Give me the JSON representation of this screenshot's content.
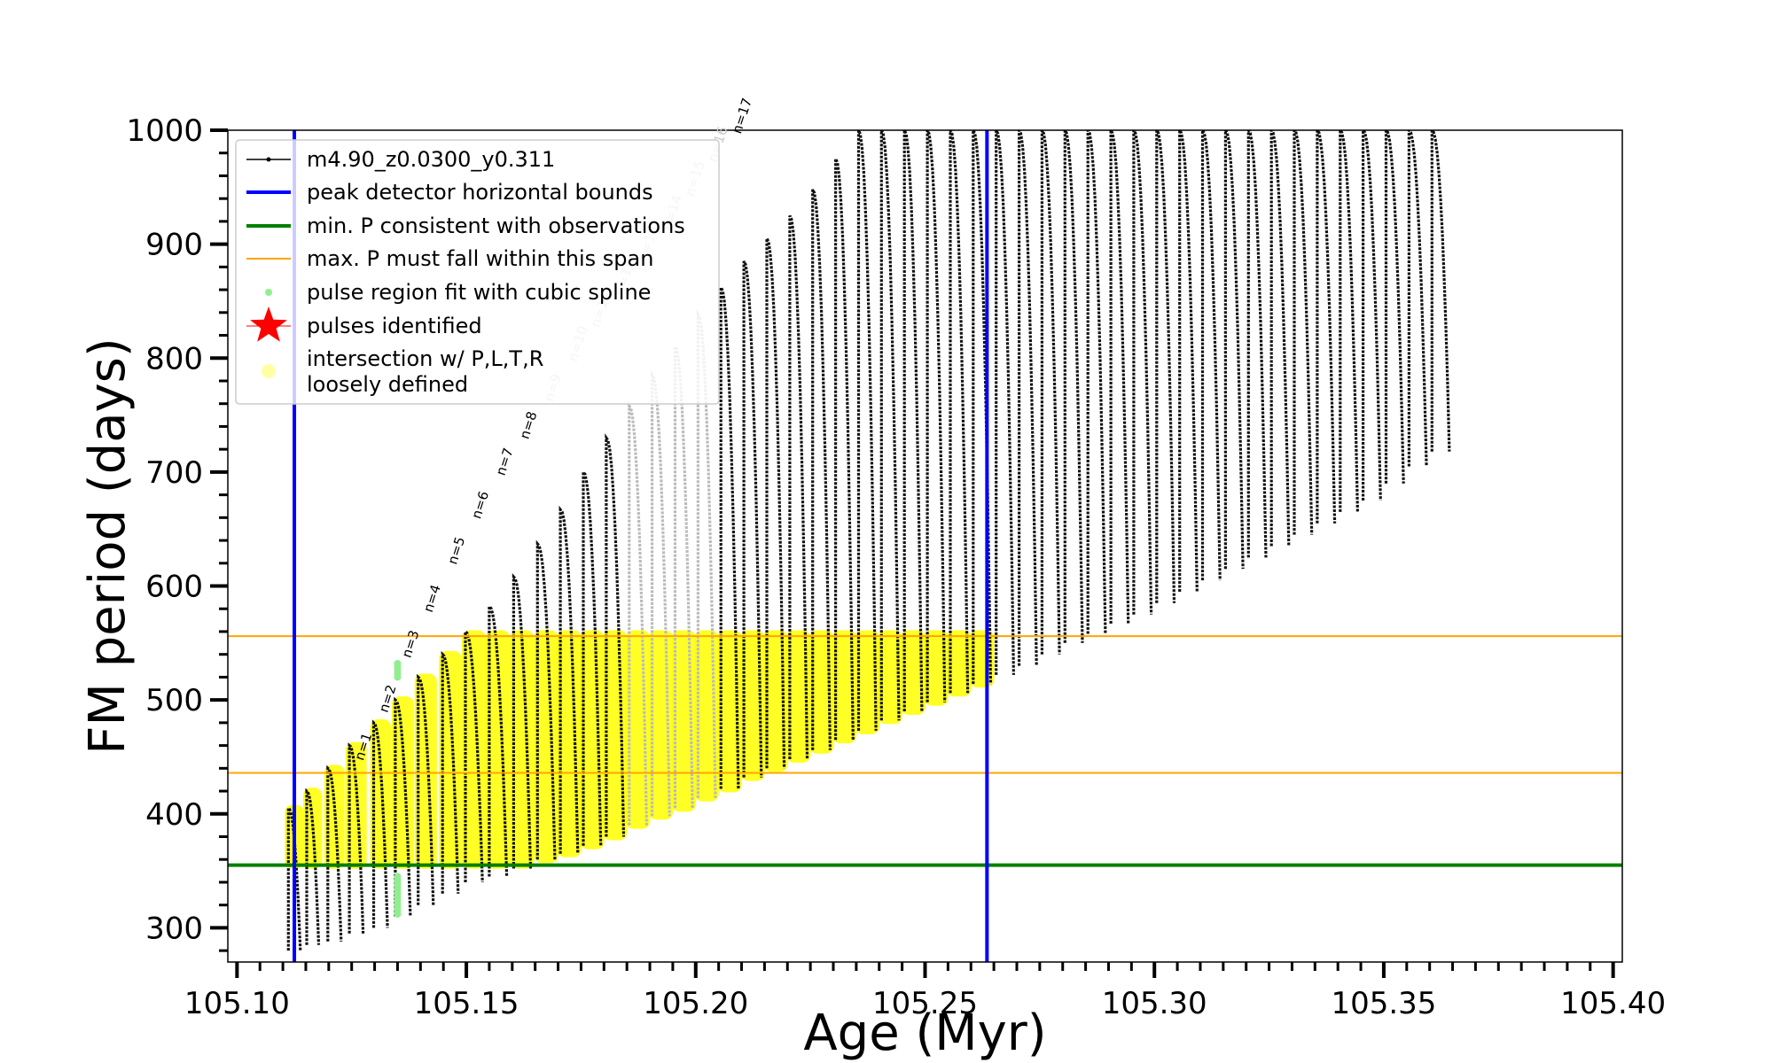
{
  "chart_data": {
    "type": "line",
    "xlabel": "Age (Myr)",
    "ylabel": "FM period (days)",
    "xlim": [
      105.098,
      105.402
    ],
    "ylim": [
      270,
      1000
    ],
    "x_ticks": [
      "105.10",
      "105.15",
      "105.20",
      "105.25",
      "105.30",
      "105.35",
      "105.40"
    ],
    "y_ticks": [
      "300",
      "400",
      "500",
      "600",
      "700",
      "800",
      "900",
      "1000"
    ],
    "legend_position": "upper-left",
    "legend": [
      {
        "label": "m4.90_z0.0300_y0.311",
        "marker": "line-dot",
        "color": "#000000"
      },
      {
        "label": "peak detector horizontal bounds",
        "marker": "line",
        "color": "#0000ff"
      },
      {
        "label": "min. P consistent with observations",
        "marker": "line",
        "color": "#008000"
      },
      {
        "label": "max. P must fall within this span",
        "marker": "line",
        "color": "#ffa500"
      },
      {
        "label": "pulse region fit with cubic spline",
        "marker": "dot",
        "color": "#90ee90"
      },
      {
        "label": "pulses identified",
        "marker": "star",
        "color": "#ff0000"
      },
      {
        "label": "intersection w/ P,L,T,R",
        "label2": "loosely defined",
        "marker": "circle",
        "color": "#ffff00"
      }
    ],
    "vertical_lines": [
      {
        "x": 105.1125,
        "color": "#0000ff",
        "name": "peak detector horizontal bounds"
      },
      {
        "x": 105.2635,
        "color": "#0000ff",
        "name": "peak detector horizontal bounds"
      }
    ],
    "horizontal_lines": [
      {
        "y": 355,
        "color": "#008000",
        "name": "min. P consistent with observations"
      },
      {
        "y": 436,
        "color": "#ffa500",
        "name": "max. P must fall within this span"
      },
      {
        "y": 556,
        "color": "#ffa500",
        "name": "max. P must fall within this span"
      }
    ],
    "series": [
      {
        "name": "m4.90_z0.0300_y0.311",
        "pulses": [
          {
            "start": 105.1112,
            "end": 105.1138,
            "min": 280,
            "max": 405
          },
          {
            "start": 105.1152,
            "end": 105.1178,
            "min": 285,
            "max": 420
          },
          {
            "start": 105.1198,
            "end": 105.1227,
            "min": 288,
            "max": 440
          },
          {
            "start": 105.1245,
            "end": 105.1275,
            "min": 295,
            "max": 460
          },
          {
            "start": 105.1298,
            "end": 105.1328,
            "min": 300,
            "max": 480
          },
          {
            "start": 105.1345,
            "end": 105.1378,
            "min": 310,
            "max": 500
          },
          {
            "start": 105.1395,
            "end": 105.1428,
            "min": 320,
            "max": 520
          },
          {
            "start": 105.1448,
            "end": 105.1482,
            "min": 330,
            "max": 540
          },
          {
            "start": 105.1498,
            "end": 105.1535,
            "min": 340,
            "max": 560
          },
          {
            "start": 105.155,
            "end": 105.1588,
            "min": 345,
            "max": 582
          },
          {
            "start": 105.1603,
            "end": 105.164,
            "min": 352,
            "max": 608
          },
          {
            "start": 105.1655,
            "end": 105.1693,
            "min": 360,
            "max": 637
          },
          {
            "start": 105.1705,
            "end": 105.1743,
            "min": 365,
            "max": 667
          },
          {
            "start": 105.1755,
            "end": 105.1793,
            "min": 372,
            "max": 700
          },
          {
            "start": 105.1805,
            "end": 105.1843,
            "min": 380,
            "max": 730
          },
          {
            "start": 105.1855,
            "end": 105.1893,
            "min": 390,
            "max": 758
          },
          {
            "start": 105.1905,
            "end": 105.1943,
            "min": 398,
            "max": 785
          },
          {
            "start": 105.1955,
            "end": 105.1993,
            "min": 405,
            "max": 810
          },
          {
            "start": 105.2005,
            "end": 105.2043,
            "min": 414,
            "max": 838
          },
          {
            "start": 105.2055,
            "end": 105.2093,
            "min": 422,
            "max": 862
          },
          {
            "start": 105.2105,
            "end": 105.2143,
            "min": 432,
            "max": 885
          },
          {
            "start": 105.2155,
            "end": 105.2193,
            "min": 440,
            "max": 905
          },
          {
            "start": 105.2205,
            "end": 105.2243,
            "min": 448,
            "max": 925
          },
          {
            "start": 105.2255,
            "end": 105.2293,
            "min": 456,
            "max": 948
          },
          {
            "start": 105.2305,
            "end": 105.2343,
            "min": 465,
            "max": 975
          },
          {
            "start": 105.2355,
            "end": 105.2393,
            "min": 473,
            "max": 1000
          },
          {
            "start": 105.2405,
            "end": 105.2443,
            "min": 482,
            "max": 1000
          },
          {
            "start": 105.2455,
            "end": 105.2493,
            "min": 490,
            "max": 1000
          },
          {
            "start": 105.2505,
            "end": 105.2543,
            "min": 498,
            "max": 1000
          },
          {
            "start": 105.2555,
            "end": 105.2593,
            "min": 506,
            "max": 1000
          },
          {
            "start": 105.2605,
            "end": 105.2643,
            "min": 514,
            "max": 1000
          },
          {
            "start": 105.2655,
            "end": 105.2693,
            "min": 522,
            "max": 1000
          },
          {
            "start": 105.2705,
            "end": 105.2743,
            "min": 530,
            "max": 1000
          },
          {
            "start": 105.2755,
            "end": 105.2793,
            "min": 540,
            "max": 1000
          },
          {
            "start": 105.2805,
            "end": 105.2843,
            "min": 550,
            "max": 1000
          },
          {
            "start": 105.2855,
            "end": 105.2893,
            "min": 558,
            "max": 1000
          },
          {
            "start": 105.2905,
            "end": 105.2943,
            "min": 567,
            "max": 1000
          },
          {
            "start": 105.2955,
            "end": 105.2993,
            "min": 575,
            "max": 1000
          },
          {
            "start": 105.3005,
            "end": 105.3043,
            "min": 585,
            "max": 1000
          },
          {
            "start": 105.3055,
            "end": 105.3093,
            "min": 595,
            "max": 1000
          },
          {
            "start": 105.3105,
            "end": 105.3143,
            "min": 605,
            "max": 1000
          },
          {
            "start": 105.3155,
            "end": 105.3193,
            "min": 615,
            "max": 1000
          },
          {
            "start": 105.3205,
            "end": 105.3243,
            "min": 625,
            "max": 1000
          },
          {
            "start": 105.3255,
            "end": 105.3293,
            "min": 635,
            "max": 1000
          },
          {
            "start": 105.3305,
            "end": 105.3343,
            "min": 645,
            "max": 1000
          },
          {
            "start": 105.3355,
            "end": 105.3393,
            "min": 655,
            "max": 1000
          },
          {
            "start": 105.3405,
            "end": 105.3443,
            "min": 665,
            "max": 1000
          },
          {
            "start": 105.3455,
            "end": 105.3493,
            "min": 675,
            "max": 1000
          },
          {
            "start": 105.3505,
            "end": 105.3543,
            "min": 690,
            "max": 1000
          },
          {
            "start": 105.3555,
            "end": 105.3593,
            "min": 705,
            "max": 1000
          },
          {
            "start": 105.3605,
            "end": 105.3643,
            "min": 718,
            "max": 1000
          }
        ]
      }
    ],
    "pulse_labels": [
      {
        "text": "n=1",
        "x": 105.1275,
        "y": 440,
        "color": "#000000"
      },
      {
        "text": "n=2",
        "x": 105.1328,
        "y": 482,
        "color": "#000000"
      },
      {
        "text": "n=3",
        "x": 105.1378,
        "y": 530,
        "color": "#000000"
      },
      {
        "text": "n=4",
        "x": 105.1425,
        "y": 570,
        "color": "#000000"
      },
      {
        "text": "n=5",
        "x": 105.1478,
        "y": 612,
        "color": "#000000"
      },
      {
        "text": "n=6",
        "x": 105.153,
        "y": 652,
        "color": "#000000"
      },
      {
        "text": "n=7",
        "x": 105.1583,
        "y": 690,
        "color": "#000000"
      },
      {
        "text": "n=8",
        "x": 105.1635,
        "y": 722,
        "color": "#000000"
      },
      {
        "text": "n=9",
        "x": 105.1688,
        "y": 755,
        "color": "#cccccc"
      },
      {
        "text": "n=10",
        "x": 105.174,
        "y": 790,
        "color": "#cccccc"
      },
      {
        "text": "n=11",
        "x": 105.179,
        "y": 820,
        "color": "#cccccc"
      },
      {
        "text": "n=12",
        "x": 105.1842,
        "y": 848,
        "color": "#cccccc"
      },
      {
        "text": "n=13",
        "x": 105.1893,
        "y": 878,
        "color": "#cccccc"
      },
      {
        "text": "n=14",
        "x": 105.1945,
        "y": 905,
        "color": "#cccccc"
      },
      {
        "text": "n=15",
        "x": 105.1995,
        "y": 935,
        "color": "#cccccc"
      },
      {
        "text": "n=16",
        "x": 105.2045,
        "y": 965,
        "color": "#cccccc"
      },
      {
        "text": "n=17",
        "x": 105.2098,
        "y": 990,
        "color": "#000000"
      }
    ],
    "spline_fit_points": [
      {
        "x": 105.135,
        "ymin": 312,
        "ymax": 345
      },
      {
        "x": 105.135,
        "ymin": 520,
        "ymax": 532
      }
    ],
    "yellow_region": {
      "x_end": 105.2635,
      "ymin": 355,
      "ymax": 558
    },
    "light_gray_range": {
      "x_start": 105.185,
      "x_end": 105.206
    }
  }
}
